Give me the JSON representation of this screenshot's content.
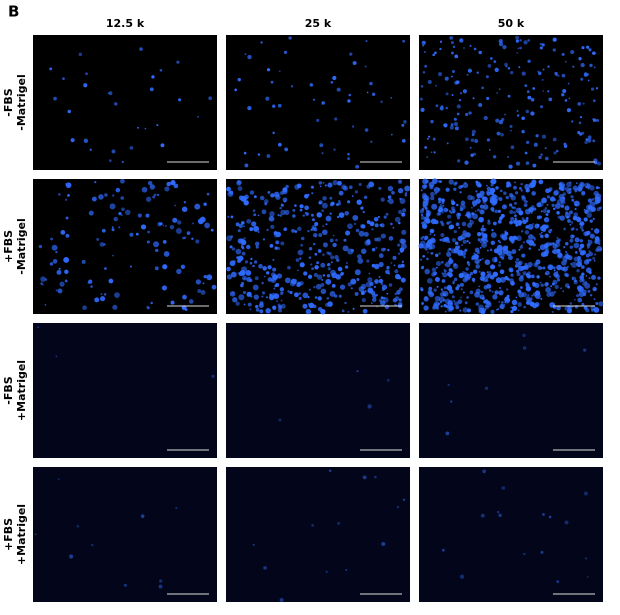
{
  "panel_label": "B",
  "columns": [
    "12.5 k",
    "25 k",
    "50 k"
  ],
  "rows": [
    [
      "-FBS",
      "-Matrigel"
    ],
    [
      "+FBS",
      "-Matrigel"
    ],
    [
      "-FBS",
      "+Matrigel"
    ],
    [
      "+FBS",
      "+Matrigel"
    ]
  ]
}
